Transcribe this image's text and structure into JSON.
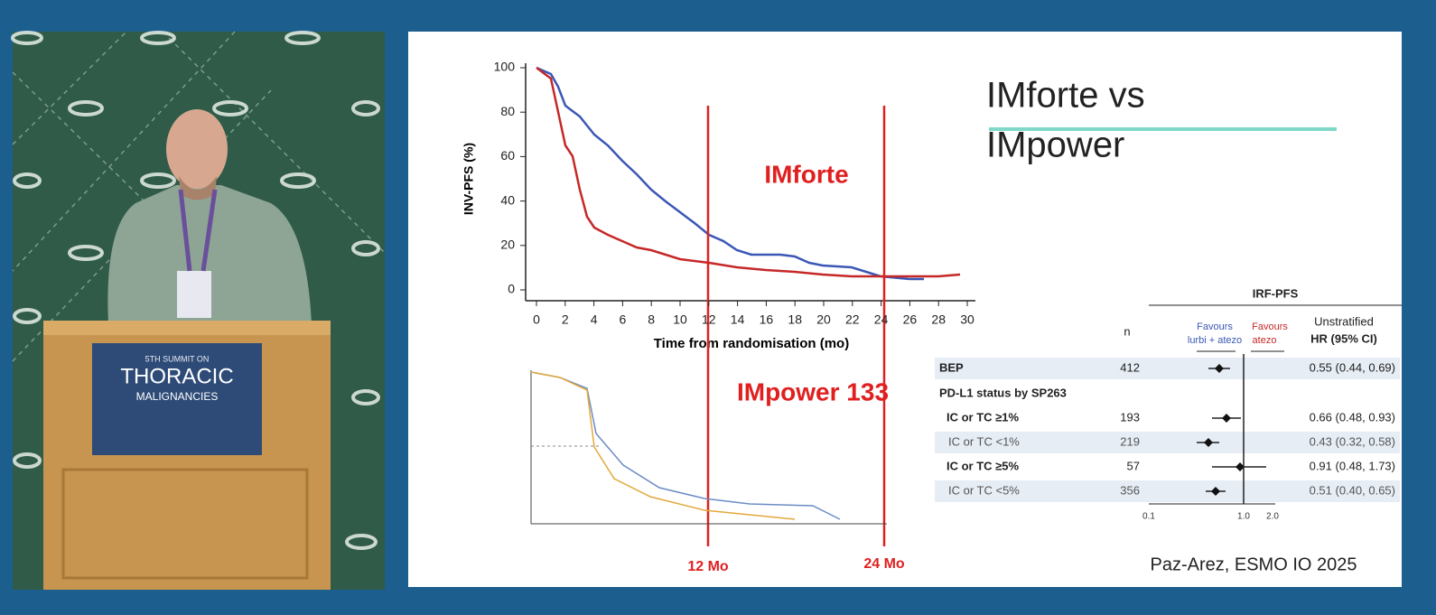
{
  "podium_sign": {
    "line1": "5TH SUMMIT ON",
    "line2": "THORACIC",
    "line3": "MALIGNANCIES"
  },
  "slide": {
    "title_line1": "IMforte vs",
    "title_line2": "IMpower",
    "km_chart": {
      "y_label": "INV-PFS (%)",
      "x_label": "Time from randomisation (mo)",
      "yticks": [
        0,
        20,
        40,
        60,
        80,
        100
      ],
      "xticks": [
        0,
        2,
        4,
        6,
        8,
        10,
        12,
        14,
        16,
        18,
        20,
        22,
        24,
        26,
        28,
        30
      ]
    },
    "annotation_imforte": "IMforte",
    "annotation_impower": "IMpower 133",
    "marker_12": "12 Mo",
    "marker_24": "24 Mo",
    "forest": {
      "header": "IRF-PFS",
      "n_header": "n",
      "favours_left": [
        "Favours",
        "lurbi + atezo"
      ],
      "favours_right": [
        "Favours",
        "atezo"
      ],
      "hr_header": [
        "Unstratified",
        "HR (95% CI)"
      ],
      "subheader": "PD-L1 status by SP263",
      "rows": [
        [
          "BEP",
          "412",
          "0.55 (0.44, 0.69)"
        ],
        [
          "IC or TC ≥1%",
          "193",
          "0.66 (0.48, 0.93)"
        ],
        [
          "IC or TC <1%",
          "219",
          "0.43 (0.32, 0.58)"
        ],
        [
          "IC or TC ≥5%",
          "57",
          "0.91 (0.48, 1.73)"
        ],
        [
          "IC or TC <5%",
          "356",
          "0.51 (0.40, 0.65)"
        ]
      ],
      "axis_ticks": [
        "0.1",
        "1.0",
        "2.0"
      ]
    },
    "citation": "Paz-Arez, ESMO IO 2025"
  }
}
